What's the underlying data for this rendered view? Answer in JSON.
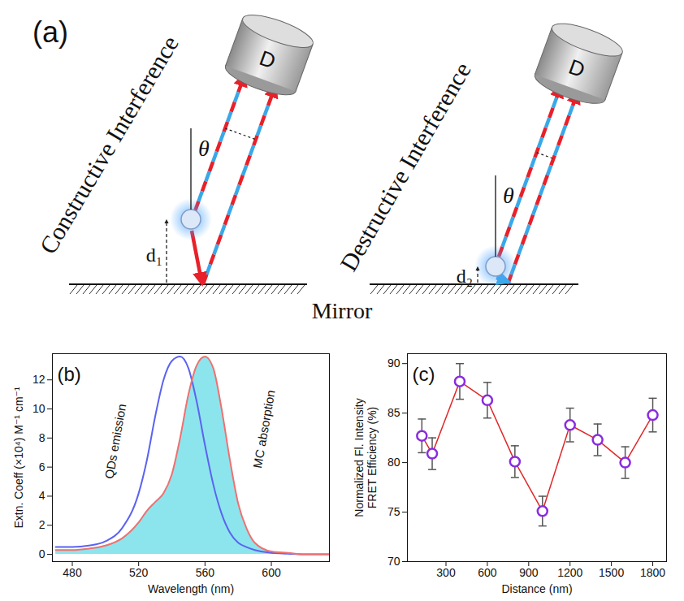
{
  "diagram": {
    "panel": "(a)",
    "mirror": "Mirror",
    "sides": [
      {
        "title": "Constructive Interference",
        "detector": "D",
        "angle": "θ",
        "distance": "d₁"
      },
      {
        "title": "Destructive Interference",
        "detector": "D",
        "angle": "θ",
        "distance": "d₂"
      }
    ]
  },
  "chart_data": [
    {
      "type": "line",
      "panel": "(b)",
      "xlabel": "Wavelength (nm)",
      "ylabel": "Extn. Coeff (×10⁴) M⁻¹ cm⁻¹",
      "x": [
        470,
        480,
        490,
        500,
        510,
        520,
        525,
        530,
        535,
        540,
        545,
        550,
        555,
        560,
        565,
        570,
        575,
        580,
        585,
        590,
        600,
        610,
        620,
        635
      ],
      "series": [
        {
          "name": "QDs emission",
          "color": "#5b63f0",
          "type": "line",
          "values": [
            0.5,
            0.5,
            0.6,
            0.9,
            1.8,
            4.2,
            6.5,
            9.5,
            12.0,
            13.3,
            13.6,
            12.8,
            10.5,
            7.5,
            4.8,
            2.8,
            1.5,
            0.8,
            0.5,
            0.3,
            0.1,
            0.05,
            0,
            0
          ]
        },
        {
          "name": "MC absorption",
          "color": "#f07070",
          "type": "area",
          "values": [
            0.3,
            0.3,
            0.4,
            0.6,
            1.1,
            2.2,
            3.0,
            3.6,
            4.2,
            5.5,
            8.0,
            11.0,
            13.0,
            13.6,
            12.8,
            10.0,
            6.5,
            3.5,
            1.8,
            0.8,
            0.2,
            0.1,
            0,
            0
          ]
        }
      ],
      "xlim": [
        468,
        635
      ],
      "xticks": [
        480,
        520,
        560,
        600
      ],
      "ylim": [
        -0.5,
        13.8
      ],
      "yticks": [
        0,
        2,
        4,
        6,
        8,
        10,
        12
      ]
    },
    {
      "type": "line",
      "panel": "(c)",
      "xlabel": "Distance (nm)",
      "ylabel": "Normalized Fl. Intensity\nFRET Efficiency (%)",
      "x": [
        125,
        200,
        400,
        600,
        800,
        1000,
        1200,
        1400,
        1600,
        1800
      ],
      "values": [
        82.7,
        80.9,
        88.2,
        86.3,
        80.1,
        75.1,
        83.8,
        82.3,
        80.0,
        84.8
      ],
      "errors": [
        1.7,
        1.6,
        1.8,
        1.8,
        1.6,
        1.5,
        1.7,
        1.6,
        1.6,
        1.7
      ],
      "color": "#e02828",
      "marker": "circle",
      "xlim": [
        20,
        1900
      ],
      "xticks": [
        300,
        600,
        900,
        1200,
        1500,
        1800
      ],
      "ylim": [
        70,
        91
      ],
      "yticks": [
        70,
        75,
        80,
        85,
        90
      ]
    }
  ]
}
